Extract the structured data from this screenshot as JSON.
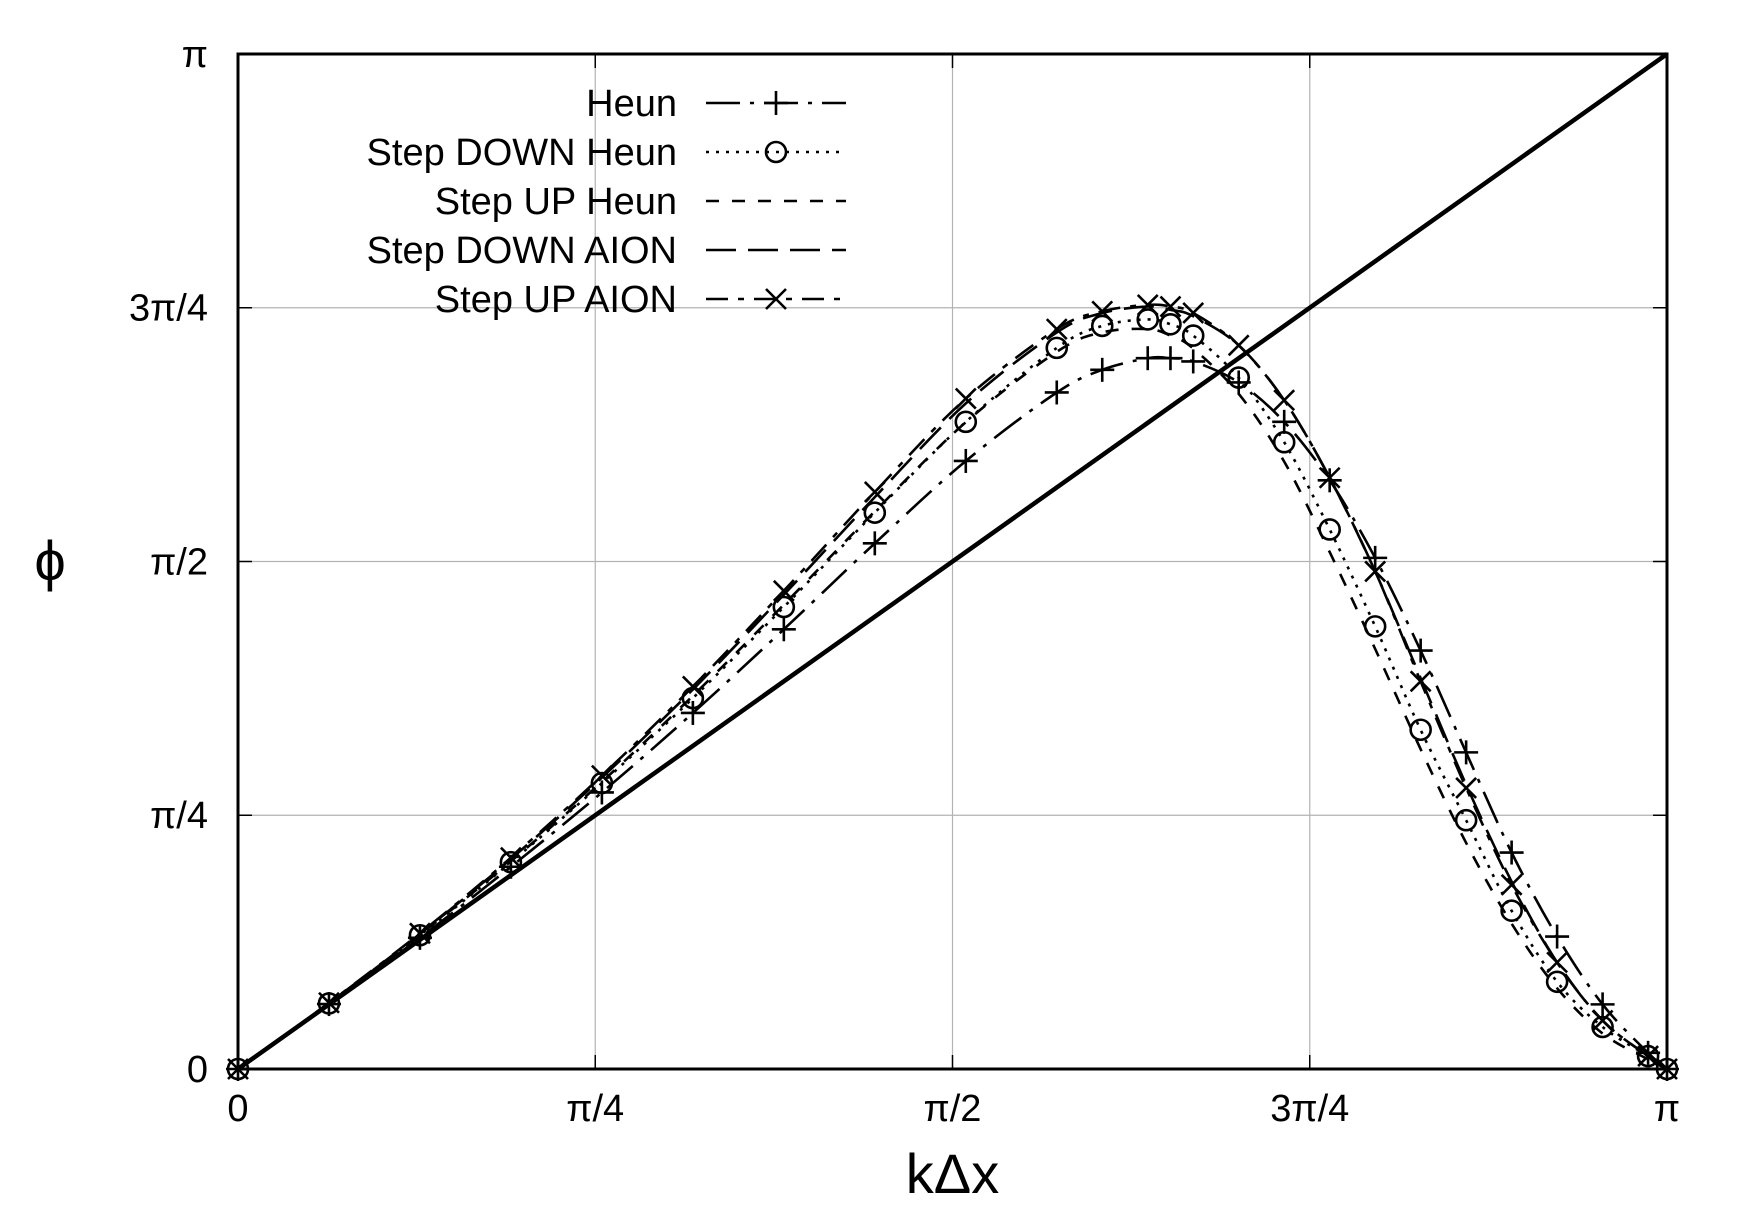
{
  "chart_data": {
    "type": "line",
    "title": "",
    "xlabel": "kΔx",
    "ylabel": "ϕ",
    "xlim": [
      0,
      3.14159
    ],
    "ylim": [
      0,
      3.14159
    ],
    "grid": true,
    "legend_position": "top-left",
    "x_ticks": [
      {
        "value": 0,
        "label": "0"
      },
      {
        "value": 0.7854,
        "label": "π/4"
      },
      {
        "value": 1.5708,
        "label": "π/2"
      },
      {
        "value": 2.3562,
        "label": "3π/4"
      },
      {
        "value": 3.14159,
        "label": "π"
      }
    ],
    "y_ticks": [
      {
        "value": 0,
        "label": "0"
      },
      {
        "value": 0.7854,
        "label": "π/4"
      },
      {
        "value": 1.5708,
        "label": "π/2"
      },
      {
        "value": 2.3562,
        "label": "3π/4"
      },
      {
        "value": 3.14159,
        "label": "π"
      }
    ],
    "reference_line": {
      "x": [
        0,
        3.14159
      ],
      "y": [
        0,
        3.14159
      ]
    },
    "series": [
      {
        "name": "Heun",
        "line_style": "long-dash-dot",
        "marker": "plus",
        "x": [
          0,
          0.2,
          0.4,
          0.6,
          0.8,
          1.0,
          1.2,
          1.4,
          1.6,
          1.8,
          1.9,
          2.0,
          2.05,
          2.1,
          2.2,
          2.3,
          2.4,
          2.5,
          2.6,
          2.7,
          2.8,
          2.9,
          3.0,
          3.1,
          3.14159
        ],
        "y": [
          0,
          0.201,
          0.406,
          0.626,
          0.856,
          1.102,
          1.361,
          1.627,
          1.882,
          2.094,
          2.164,
          2.2,
          2.2,
          2.19,
          2.125,
          2.003,
          1.822,
          1.582,
          1.295,
          0.98,
          0.67,
          0.41,
          0.2,
          0.05,
          0
        ]
      },
      {
        "name": "Step DOWN Heun",
        "line_style": "dotted",
        "marker": "circle",
        "x": [
          0,
          0.2,
          0.4,
          0.6,
          0.8,
          1.0,
          1.2,
          1.4,
          1.6,
          1.8,
          1.9,
          2.0,
          2.05,
          2.1,
          2.2,
          2.3,
          2.4,
          2.5,
          2.6,
          2.7,
          2.8,
          2.9,
          3.0,
          3.1,
          3.14159
        ],
        "y": [
          0,
          0.203,
          0.414,
          0.64,
          0.885,
          1.148,
          1.43,
          1.722,
          2.003,
          2.232,
          2.3,
          2.32,
          2.305,
          2.27,
          2.14,
          1.94,
          1.67,
          1.37,
          1.05,
          0.77,
          0.49,
          0.27,
          0.13,
          0.04,
          0
        ]
      },
      {
        "name": "Step UP Heun",
        "line_style": "dashed",
        "marker": "none",
        "x": [
          0,
          0.2,
          0.4,
          0.6,
          0.8,
          1.0,
          1.2,
          1.4,
          1.6,
          1.8,
          1.9,
          2.0,
          2.05,
          2.1,
          2.2,
          2.3,
          2.4,
          2.5,
          2.6,
          2.7,
          2.8,
          2.9,
          3.0,
          3.1,
          3.14159
        ],
        "y": [
          0,
          0.204,
          0.416,
          0.643,
          0.889,
          1.155,
          1.437,
          1.726,
          2.002,
          2.22,
          2.28,
          2.29,
          2.27,
          2.23,
          2.09,
          1.88,
          1.6,
          1.3,
          0.99,
          0.7,
          0.45,
          0.25,
          0.11,
          0.03,
          0
        ]
      },
      {
        "name": "Step DOWN AION",
        "line_style": "long-dash",
        "marker": "none",
        "x": [
          0,
          0.2,
          0.4,
          0.6,
          0.8,
          1.0,
          1.2,
          1.4,
          1.6,
          1.8,
          1.9,
          2.0,
          2.05,
          2.1,
          2.2,
          2.3,
          2.4,
          2.5,
          2.6,
          2.7,
          2.8,
          2.9,
          3.0,
          3.1,
          3.14159
        ],
        "y": [
          0,
          0.204,
          0.418,
          0.65,
          0.902,
          1.175,
          1.468,
          1.77,
          2.06,
          2.28,
          2.34,
          2.36,
          2.35,
          2.33,
          2.24,
          2.07,
          1.83,
          1.54,
          1.21,
          0.88,
          0.58,
          0.33,
          0.15,
          0.04,
          0
        ]
      },
      {
        "name": "Step UP AION",
        "line_style": "dash",
        "marker": "cross",
        "x": [
          0,
          0.2,
          0.4,
          0.6,
          0.8,
          1.0,
          1.2,
          1.4,
          1.6,
          1.8,
          1.9,
          2.0,
          2.05,
          2.1,
          2.2,
          2.3,
          2.4,
          2.5,
          2.6,
          2.7,
          2.8,
          2.9,
          3.0,
          3.1,
          3.14159
        ],
        "y": [
          0,
          0.205,
          0.42,
          0.654,
          0.908,
          1.184,
          1.48,
          1.786,
          2.075,
          2.29,
          2.345,
          2.365,
          2.36,
          2.34,
          2.24,
          2.07,
          1.83,
          1.54,
          1.2,
          0.87,
          0.57,
          0.33,
          0.15,
          0.04,
          0
        ]
      }
    ]
  }
}
